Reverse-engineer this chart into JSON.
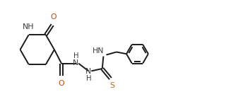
{
  "bg_color": "#ffffff",
  "line_color": "#1a1a1a",
  "label_color": "#3d3d3d",
  "o_color": "#cc4400",
  "s_color": "#cc6600",
  "bond_width": 1.4,
  "fig_width": 3.54,
  "fig_height": 1.47,
  "dpi": 100,
  "xlim": [
    0.0,
    10.5
  ],
  "ylim": [
    0.2,
    4.3
  ]
}
